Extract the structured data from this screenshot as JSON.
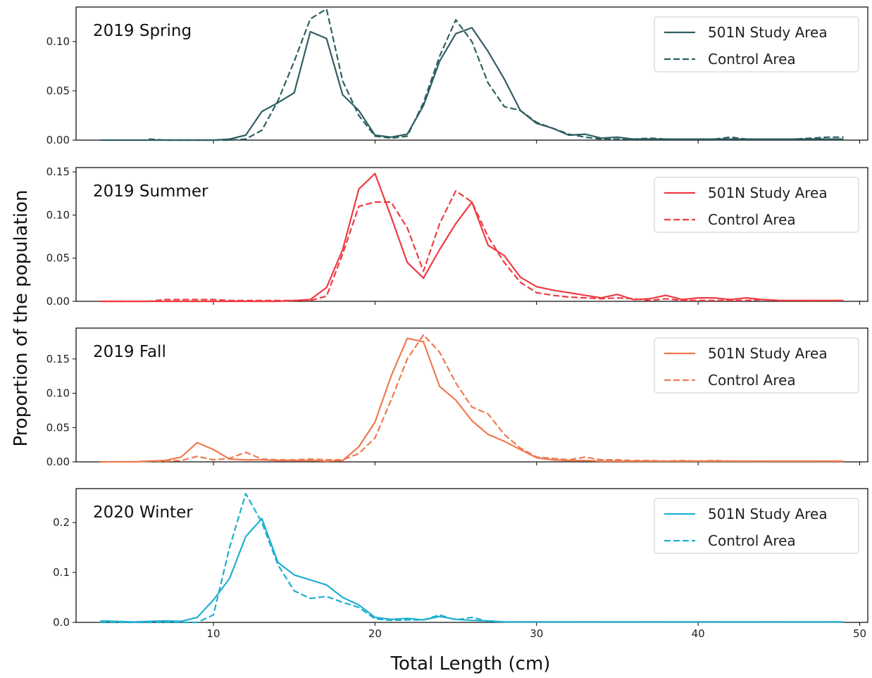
{
  "chart_data": {
    "type": "line",
    "xlabel": "Total Length (cm)",
    "ylabel": "Proportion of the population",
    "xlim": [
      1.5,
      50.5
    ],
    "xticks": [
      10,
      20,
      30,
      40,
      50
    ],
    "legend_position": "top-right",
    "legend_labels": [
      "501N Study Area",
      "Control Area"
    ],
    "panels": [
      {
        "title": "2019 Spring",
        "color": "#2f5f63",
        "ylim": [
          0,
          0.135
        ],
        "yticks": [
          "0.00",
          "0.05",
          "0.10"
        ],
        "series": [
          {
            "name": "501N Study Area",
            "style": "solid",
            "x": [
              3,
              4,
              5,
              6,
              7,
              8,
              9,
              10,
              11,
              12,
              13,
              14,
              15,
              16,
              17,
              18,
              19,
              20,
              21,
              22,
              23,
              24,
              25,
              26,
              27,
              28,
              29,
              30,
              31,
              32,
              33,
              34,
              35,
              36,
              37,
              38,
              39,
              40,
              41,
              42,
              43,
              44,
              45,
              46,
              47,
              48,
              49
            ],
            "y": [
              0,
              0,
              0,
              0,
              0,
              0,
              0,
              0,
              0.001,
              0.005,
              0.029,
              0.038,
              0.048,
              0.11,
              0.103,
              0.046,
              0.03,
              0.005,
              0.003,
              0.006,
              0.035,
              0.08,
              0.108,
              0.114,
              0.09,
              0.062,
              0.03,
              0.017,
              0.012,
              0.005,
              0.006,
              0.002,
              0.003,
              0.001,
              0.001,
              0.001,
              0.001,
              0.001,
              0.001,
              0.001,
              0.001,
              0.001,
              0.001,
              0.001,
              0.001,
              0.001,
              0.001
            ]
          },
          {
            "name": "Control Area",
            "style": "dashed",
            "x": [
              6,
              7,
              8,
              9,
              10,
              11,
              12,
              13,
              14,
              15,
              16,
              17,
              18,
              19,
              20,
              21,
              22,
              23,
              24,
              25,
              26,
              27,
              28,
              29,
              30,
              31,
              32,
              33,
              34,
              35,
              36,
              37,
              38,
              39,
              40,
              41,
              42,
              43,
              44,
              45,
              46,
              47,
              48,
              49
            ],
            "y": [
              0.001,
              0,
              0,
              0,
              0,
              0,
              0.001,
              0.01,
              0.04,
              0.08,
              0.123,
              0.133,
              0.06,
              0.025,
              0.004,
              0.002,
              0.004,
              0.038,
              0.085,
              0.122,
              0.1,
              0.058,
              0.034,
              0.03,
              0.018,
              0.012,
              0.006,
              0.003,
              0.001,
              0.001,
              0.001,
              0.002,
              0.001,
              0.001,
              0.001,
              0.001,
              0.003,
              0.001,
              0.001,
              0.001,
              0.001,
              0.002,
              0.003,
              0.003
            ]
          }
        ]
      },
      {
        "title": "2019 Summer",
        "color": "#ee3b42",
        "ylim": [
          0,
          0.155
        ],
        "yticks": [
          "0.00",
          "0.05",
          "0.10",
          "0.15"
        ],
        "series": [
          {
            "name": "501N Study Area",
            "style": "solid",
            "x": [
              3,
              4,
              5,
              6,
              7,
              8,
              9,
              10,
              11,
              12,
              13,
              14,
              15,
              16,
              17,
              18,
              19,
              20,
              21,
              22,
              23,
              24,
              25,
              26,
              27,
              28,
              29,
              30,
              31,
              32,
              33,
              34,
              35,
              36,
              37,
              38,
              39,
              40,
              41,
              42,
              43,
              44,
              45,
              46,
              47,
              48,
              49
            ],
            "y": [
              0,
              0,
              0,
              0,
              0,
              0,
              0,
              0,
              0,
              0,
              0,
              0,
              0.001,
              0.002,
              0.016,
              0.06,
              0.13,
              0.148,
              0.098,
              0.045,
              0.027,
              0.06,
              0.09,
              0.115,
              0.065,
              0.053,
              0.028,
              0.017,
              0.013,
              0.01,
              0.007,
              0.004,
              0.008,
              0.002,
              0.003,
              0.007,
              0.002,
              0.004,
              0.004,
              0.002,
              0.004,
              0.002,
              0.001,
              0.001,
              0.001,
              0.001,
              0.001
            ]
          },
          {
            "name": "Control Area",
            "style": "dashed",
            "x": [
              3,
              4,
              5,
              6,
              7,
              8,
              9,
              10,
              11,
              12,
              13,
              14,
              15,
              16,
              17,
              18,
              19,
              20,
              21,
              22,
              23,
              24,
              25,
              26,
              27,
              28,
              29,
              30,
              31,
              32,
              33,
              34,
              35,
              36,
              37,
              38,
              39,
              40,
              41,
              42,
              43,
              44,
              45,
              46,
              47,
              48,
              49
            ],
            "y": [
              0,
              0,
              0,
              0,
              0.002,
              0.002,
              0.002,
              0.002,
              0.001,
              0.001,
              0.001,
              0.001,
              0.001,
              0.001,
              0.006,
              0.055,
              0.11,
              0.115,
              0.115,
              0.085,
              0.035,
              0.09,
              0.128,
              0.115,
              0.075,
              0.045,
              0.022,
              0.01,
              0.007,
              0.005,
              0.004,
              0.003,
              0.004,
              0.003,
              0.001,
              0.003,
              0.001,
              0.001,
              0.001,
              0.001,
              0.001,
              0.002,
              0.001,
              0.001,
              0.001,
              0.001,
              0.001
            ]
          }
        ]
      },
      {
        "title": "2019 Fall",
        "color": "#ef7a50",
        "ylim": [
          0,
          0.195
        ],
        "yticks": [
          "0.00",
          "0.05",
          "0.10",
          "0.15"
        ],
        "series": [
          {
            "name": "501N Study Area",
            "style": "solid",
            "x": [
              3,
              4,
              5,
              6,
              7,
              8,
              9,
              10,
              11,
              12,
              13,
              14,
              15,
              16,
              17,
              18,
              19,
              20,
              21,
              22,
              23,
              24,
              25,
              26,
              27,
              28,
              29,
              30,
              31,
              32,
              33,
              34,
              35,
              36,
              37,
              38,
              39,
              40,
              41,
              42,
              43,
              44,
              45,
              46,
              47,
              48,
              49
            ],
            "y": [
              0,
              0,
              0,
              0.001,
              0.002,
              0.007,
              0.028,
              0.018,
              0.004,
              0.003,
              0.003,
              0.002,
              0.002,
              0.002,
              0.001,
              0.002,
              0.022,
              0.058,
              0.125,
              0.18,
              0.175,
              0.11,
              0.09,
              0.06,
              0.04,
              0.03,
              0.018,
              0.006,
              0.003,
              0.002,
              0.002,
              0.001,
              0.001,
              0.001,
              0.001,
              0.001,
              0.001,
              0.001,
              0.001,
              0.001,
              0.001,
              0.001,
              0.001,
              0.001,
              0.001,
              0.001,
              0.001
            ]
          },
          {
            "name": "Control Area",
            "style": "dashed",
            "x": [
              3,
              4,
              5,
              6,
              7,
              8,
              9,
              10,
              11,
              12,
              13,
              14,
              15,
              16,
              17,
              18,
              19,
              20,
              21,
              22,
              23,
              24,
              25,
              26,
              27,
              28,
              29,
              30,
              31,
              32,
              33,
              34,
              35,
              36,
              37,
              38,
              39,
              40,
              41,
              42,
              43,
              44,
              45,
              46,
              47,
              48,
              49
            ],
            "y": [
              0,
              0,
              0,
              0.001,
              0.001,
              0.002,
              0.008,
              0.003,
              0.005,
              0.014,
              0.004,
              0.003,
              0.003,
              0.004,
              0.003,
              0.003,
              0.012,
              0.035,
              0.09,
              0.15,
              0.185,
              0.16,
              0.115,
              0.08,
              0.07,
              0.04,
              0.02,
              0.007,
              0.005,
              0.003,
              0.007,
              0.003,
              0.003,
              0.002,
              0.002,
              0.001,
              0.002,
              0.001,
              0.002,
              0.001,
              0.001,
              0.001,
              0.001,
              0.001,
              0.001,
              0.001,
              0.001
            ]
          }
        ]
      },
      {
        "title": "2020 Winter",
        "color": "#1fb0cf",
        "ylim": [
          0,
          0.268
        ],
        "yticks": [
          "0.0",
          "0.1",
          "0.2"
        ],
        "series": [
          {
            "name": "501N Study Area",
            "style": "solid",
            "x": [
              3,
              4,
              5,
              6,
              7,
              8,
              9,
              10,
              11,
              12,
              13,
              14,
              15,
              16,
              17,
              18,
              19,
              20,
              21,
              22,
              23,
              24,
              25,
              26,
              27,
              28,
              29,
              30,
              31,
              32,
              33,
              34,
              35,
              36,
              37,
              38,
              39,
              40,
              41,
              42,
              43,
              44,
              45,
              46,
              47,
              48,
              49
            ],
            "y": [
              0.003,
              0.002,
              0.001,
              0.002,
              0.003,
              0.002,
              0.01,
              0.045,
              0.088,
              0.172,
              0.208,
              0.12,
              0.095,
              0.085,
              0.075,
              0.05,
              0.035,
              0.01,
              0.006,
              0.008,
              0.005,
              0.012,
              0.006,
              0.004,
              0.003,
              0.001,
              0.001,
              0.001,
              0.001,
              0.001,
              0.001,
              0.001,
              0.001,
              0.001,
              0.001,
              0.001,
              0.001,
              0.001,
              0.001,
              0.001,
              0.001,
              0.001,
              0.001,
              0.001,
              0.001,
              0.001,
              0.001
            ]
          },
          {
            "name": "Control Area",
            "style": "dashed",
            "x": [
              3,
              4,
              5,
              6,
              7,
              8,
              9,
              10,
              11,
              12,
              13,
              14,
              15,
              16,
              17,
              18,
              19,
              20,
              21,
              22,
              23,
              24,
              25,
              26,
              27,
              28,
              29,
              30,
              31,
              32,
              33,
              34,
              35,
              36,
              37,
              38,
              39,
              40,
              41,
              42,
              43,
              44,
              45,
              46,
              47,
              48,
              49
            ],
            "y": [
              0,
              0,
              0,
              0,
              0,
              0,
              0,
              0.015,
              0.15,
              0.258,
              0.2,
              0.115,
              0.063,
              0.048,
              0.052,
              0.04,
              0.03,
              0.007,
              0.004,
              0.005,
              0.005,
              0.015,
              0.005,
              0.01,
              0.002,
              0.001,
              0.001,
              0.001,
              0.001,
              0.001,
              0.001,
              0.001,
              0.001,
              0.001,
              0.001,
              0.001,
              0.001,
              0.001,
              0.001,
              0.001,
              0.001,
              0.001,
              0.001,
              0.001,
              0.001,
              0.001,
              0.001
            ]
          }
        ]
      }
    ]
  }
}
